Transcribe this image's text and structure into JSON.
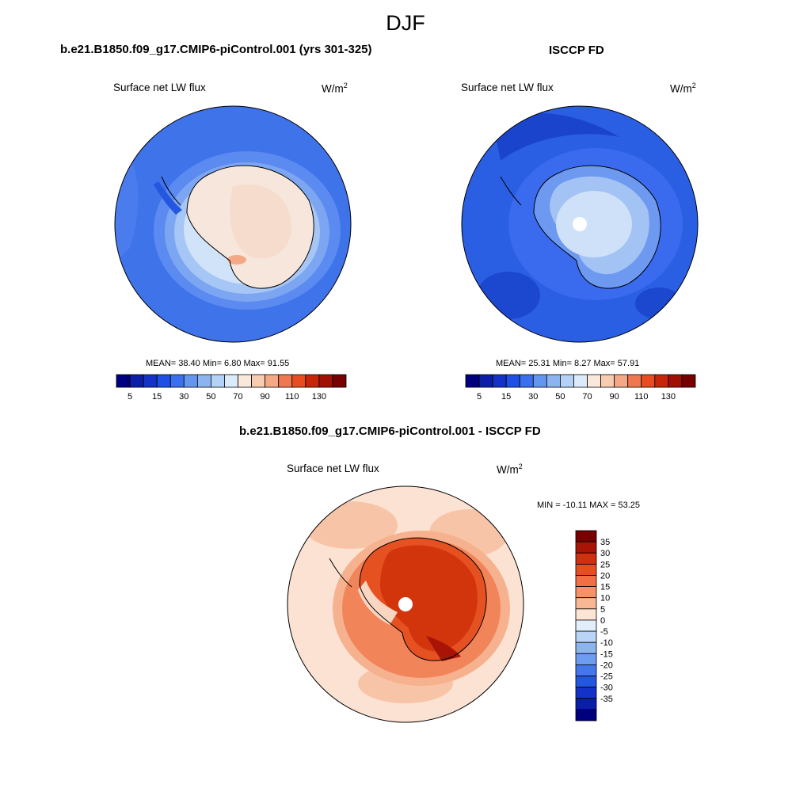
{
  "header": {
    "title": "DJF"
  },
  "panels": [
    {
      "title": "b.e21.B1850.f09_g17.CMIP6-piControl.001 (yrs 301-325)",
      "variable": "Surface net LW flux",
      "units_base": "W/m",
      "units_exp": "2",
      "stats": "MEAN=  38.40  Min=   6.80  Max=  91.55"
    },
    {
      "title": "ISCCP FD",
      "variable": "Surface net LW flux",
      "units_base": "W/m",
      "units_exp": "2",
      "stats": "MEAN=  25.31  Min=   8.27  Max=  57.91"
    },
    {
      "title": "b.e21.B1850.f09_g17.CMIP6-piControl.001 - ISCCP FD",
      "variable": "Surface net LW flux",
      "units_base": "W/m",
      "units_exp": "2",
      "stats": "MIN = -10.11 MAX =  53.25"
    }
  ],
  "chart_data": [
    {
      "type": "heatmap",
      "title": "b.e21.B1850.f09_g17.CMIP6-piControl.001 (yrs 301-325)",
      "variable": "Surface net LW flux",
      "projection": "south polar stereographic",
      "mean": 38.4,
      "min": 6.8,
      "max": 91.55,
      "colorbar": {
        "orientation": "horizontal",
        "levels": [
          5,
          10,
          15,
          20,
          30,
          40,
          50,
          60,
          70,
          80,
          90,
          100,
          110,
          120,
          130
        ],
        "tick_labels": [
          "5",
          "15",
          "30",
          "50",
          "70",
          "90",
          "110",
          "130"
        ],
        "colors": [
          "#00007f",
          "#0a1ea8",
          "#1432c8",
          "#1e50e6",
          "#3c6ef0",
          "#6496f0",
          "#8cb4f0",
          "#b4d2f5",
          "#dcebfa",
          "#fbe8dc",
          "#f8ccb1",
          "#f4a886",
          "#f07850",
          "#e84d22",
          "#c8260a",
          "#a01004",
          "#780000"
        ]
      }
    },
    {
      "type": "heatmap",
      "title": "ISCCP FD",
      "variable": "Surface net LW flux",
      "projection": "south polar stereographic",
      "mean": 25.31,
      "min": 8.27,
      "max": 57.91,
      "colorbar": {
        "orientation": "horizontal",
        "levels": [
          5,
          10,
          15,
          20,
          30,
          40,
          50,
          60,
          70,
          80,
          90,
          100,
          110,
          120,
          130
        ],
        "tick_labels": [
          "5",
          "15",
          "30",
          "50",
          "70",
          "90",
          "110",
          "130"
        ],
        "colors": [
          "#00007f",
          "#0a1ea8",
          "#1432c8",
          "#1e50e6",
          "#3c6ef0",
          "#6496f0",
          "#8cb4f0",
          "#b4d2f5",
          "#dcebfa",
          "#fbe8dc",
          "#f8ccb1",
          "#f4a886",
          "#f07850",
          "#e84d22",
          "#c8260a",
          "#a01004",
          "#780000"
        ]
      }
    },
    {
      "type": "heatmap",
      "title": "b.e21.B1850.f09_g17.CMIP6-piControl.001 - ISCCP FD",
      "variable": "Surface net LW flux",
      "projection": "south polar stereographic",
      "min": -10.11,
      "max": 53.25,
      "colorbar": {
        "orientation": "vertical",
        "levels": [
          35,
          30,
          25,
          20,
          15,
          10,
          5,
          0,
          -5,
          -10,
          -15,
          -20,
          -25,
          -30,
          -35
        ],
        "tick_labels": [
          "35",
          "30",
          "25",
          "20",
          "15",
          "10",
          "5",
          "0",
          "-5",
          "-10",
          "-15",
          "-20",
          "-25",
          "-30",
          "-35"
        ],
        "colors": [
          "#780000",
          "#a81406",
          "#d0300e",
          "#e84d22",
          "#f26e45",
          "#f4926a",
          "#f8b895",
          "#fde5d5",
          "#e3eefb",
          "#b9d4f5",
          "#8cb4f0",
          "#6e9cf0",
          "#4478ea",
          "#2456e0",
          "#1432c8",
          "#0a1ea8",
          "#00007f"
        ]
      }
    }
  ]
}
